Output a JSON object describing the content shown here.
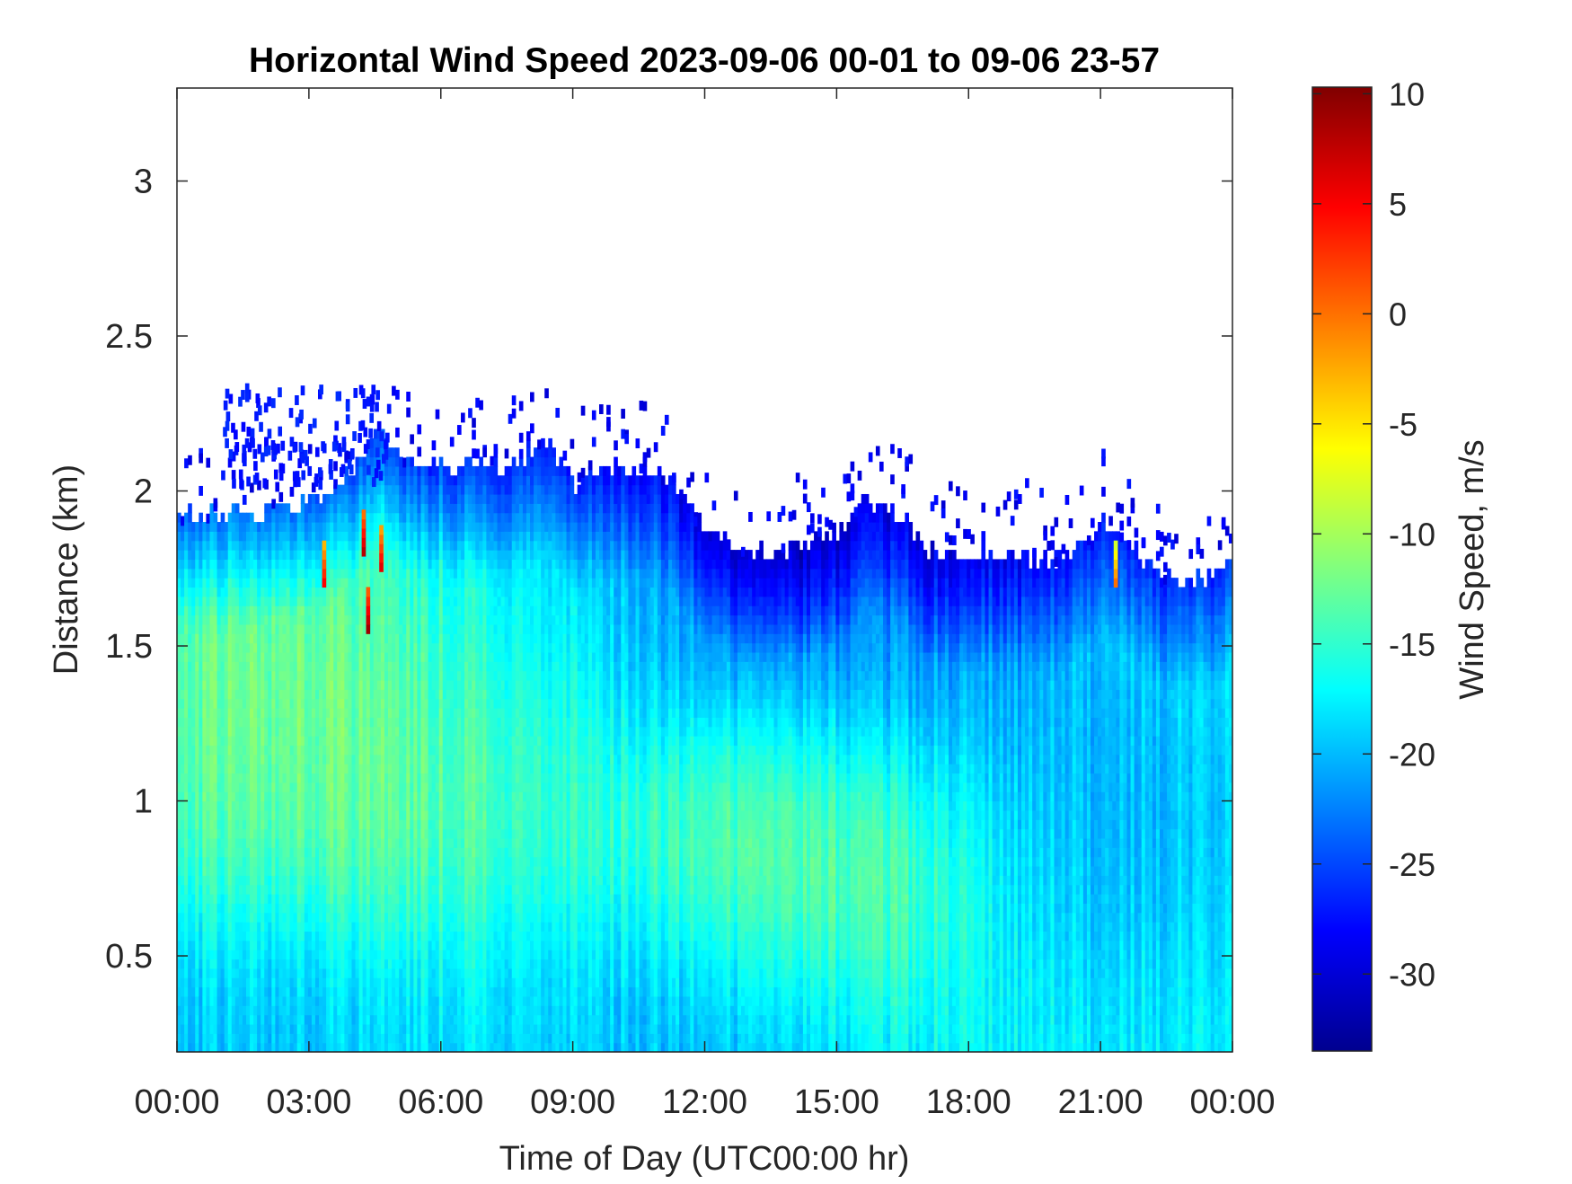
{
  "chart_data": {
    "type": "heatmap",
    "title": "Horizontal Wind Speed 2023-09-06 00-01 to 09-06 23-57",
    "xlabel": "Time of Day (UTC00:00 hr)",
    "ylabel": "Distance (km)",
    "x_ticks": [
      {
        "hour": 0,
        "label": "00:00"
      },
      {
        "hour": 3,
        "label": "03:00"
      },
      {
        "hour": 6,
        "label": "06:00"
      },
      {
        "hour": 9,
        "label": "09:00"
      },
      {
        "hour": 12,
        "label": "12:00"
      },
      {
        "hour": 15,
        "label": "15:00"
      },
      {
        "hour": 18,
        "label": "18:00"
      },
      {
        "hour": 21,
        "label": "21:00"
      },
      {
        "hour": 24,
        "label": "00:00"
      }
    ],
    "xlim": [
      0,
      24
    ],
    "y_ticks": [
      {
        "value": 0.5,
        "label": "0.5"
      },
      {
        "value": 1.0,
        "label": "1"
      },
      {
        "value": 1.5,
        "label": "1.5"
      },
      {
        "value": 2.0,
        "label": "2"
      },
      {
        "value": 2.5,
        "label": "2.5"
      },
      {
        "value": 3.0,
        "label": "3"
      }
    ],
    "ylim": [
      0.19,
      3.3
    ],
    "colorbar": {
      "label": "Wind Speed, m/s",
      "colormap": "jet",
      "clim": [
        -33.5,
        10.3
      ],
      "ticks": [
        {
          "value": 10,
          "label": "10"
        },
        {
          "value": 5,
          "label": "5"
        },
        {
          "value": 0,
          "label": "0"
        },
        {
          "value": -5,
          "label": "-5"
        },
        {
          "value": -10,
          "label": "-10"
        },
        {
          "value": -15,
          "label": "-15"
        },
        {
          "value": -20,
          "label": "-20"
        },
        {
          "value": -25,
          "label": "-25"
        },
        {
          "value": -30,
          "label": "-30"
        }
      ]
    },
    "data_top_km": [
      [
        0.0,
        1.92
      ],
      [
        0.5,
        1.91
      ],
      [
        1.0,
        1.9
      ],
      [
        1.5,
        1.93
      ],
      [
        2.0,
        1.91
      ],
      [
        2.5,
        1.95
      ],
      [
        3.0,
        1.94
      ],
      [
        3.5,
        1.99
      ],
      [
        4.0,
        2.05
      ],
      [
        4.5,
        2.17
      ],
      [
        5.0,
        2.12
      ],
      [
        5.5,
        2.07
      ],
      [
        6.0,
        2.08
      ],
      [
        6.5,
        2.06
      ],
      [
        7.0,
        2.09
      ],
      [
        7.5,
        2.05
      ],
      [
        8.0,
        2.12
      ],
      [
        8.5,
        2.14
      ],
      [
        9.0,
        2.01
      ],
      [
        9.5,
        2.04
      ],
      [
        10.0,
        2.06
      ],
      [
        10.5,
        2.05
      ],
      [
        11.0,
        2.06
      ],
      [
        11.5,
        1.97
      ],
      [
        12.0,
        1.86
      ],
      [
        12.5,
        1.82
      ],
      [
        13.0,
        1.78
      ],
      [
        13.5,
        1.8
      ],
      [
        14.0,
        1.8
      ],
      [
        14.5,
        1.83
      ],
      [
        15.0,
        1.83
      ],
      [
        15.5,
        1.95
      ],
      [
        16.0,
        1.95
      ],
      [
        16.5,
        1.91
      ],
      [
        17.0,
        1.8
      ],
      [
        17.5,
        1.78
      ],
      [
        18.0,
        1.78
      ],
      [
        18.5,
        1.79
      ],
      [
        19.0,
        1.78
      ],
      [
        19.5,
        1.77
      ],
      [
        20.0,
        1.77
      ],
      [
        20.5,
        1.8
      ],
      [
        21.0,
        1.88
      ],
      [
        21.5,
        1.85
      ],
      [
        22.0,
        1.75
      ],
      [
        22.5,
        1.72
      ],
      [
        23.0,
        1.7
      ],
      [
        23.5,
        1.72
      ],
      [
        24.0,
        1.75
      ]
    ],
    "wind_speed_field": [
      {
        "t": 0.5,
        "d": 1.05,
        "v": -12
      },
      {
        "t": 2.3,
        "d": 1.45,
        "v": -10
      },
      {
        "t": 4.5,
        "d": 1.0,
        "v": -11
      },
      {
        "t": 6.5,
        "d": 1.35,
        "v": -11
      },
      {
        "t": 13.2,
        "d": 0.85,
        "v": -10
      },
      {
        "t": 15.0,
        "d": 0.9,
        "v": -11
      },
      {
        "t": 8.0,
        "d": 1.6,
        "v": -20
      },
      {
        "t": 13.0,
        "d": 1.6,
        "v": -25
      },
      {
        "t": 16.5,
        "d": 1.45,
        "v": -25
      },
      {
        "t": 2.0,
        "d": 0.3,
        "v": -21
      },
      {
        "t": 12.0,
        "d": 0.3,
        "v": -22
      },
      {
        "t": 21.0,
        "d": 1.0,
        "v": -21
      }
    ],
    "positive_speed_spots": [
      {
        "t": 3.3,
        "d": 1.75,
        "v": 5
      },
      {
        "t": 4.2,
        "d": 1.85,
        "v": 8
      },
      {
        "t": 4.3,
        "d": 1.6,
        "v": 9
      },
      {
        "t": 4.6,
        "d": 1.8,
        "v": 6
      },
      {
        "t": 21.3,
        "d": 1.75,
        "v": 0
      }
    ]
  }
}
